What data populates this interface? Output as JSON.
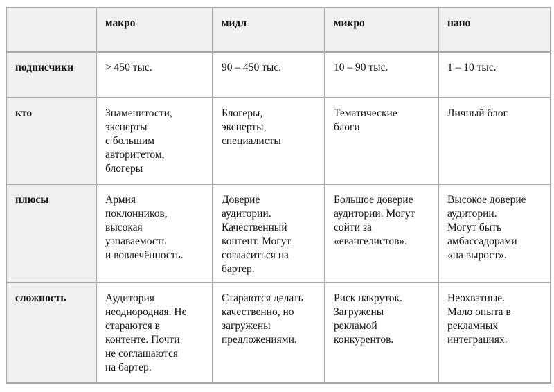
{
  "table": {
    "columns": [
      "",
      "макро",
      "мидл",
      "микро",
      "нано"
    ],
    "rows": [
      {
        "label": "подписчики",
        "cells": [
          "> 450 тыс.",
          "90 – 450 тыс.",
          "10 – 90 тыс.",
          "1 – 10 тыс."
        ]
      },
      {
        "label": "кто",
        "cells": [
          "Знаменитости,\nэксперты\nс большим\nавторитетом,\nблогеры",
          "Блогеры,\nэксперты,\nспециалисты",
          "Тематические\nблоги",
          "Личный блог"
        ]
      },
      {
        "label": "плюсы",
        "cells": [
          "Армия\nпоклонников,\nвысокая\nузнаваемость\nи вовлечённость.",
          "Доверие\nаудитории.\nКачественный\nконтент. Могут\nсогласиться на\nбартер.",
          "Большое доверие\nаудитории. Могут\nсойти за\n«евангелистов».",
          "Высокое доверие\nаудитории.\nМогут быть\nамбассадорами\n«на вырост»."
        ]
      },
      {
        "label": "сложность",
        "cells": [
          "Аудитория\nнеоднородная. Не\nстараются в\nконтенте. Почти\nне соглашаются\nна бартер.",
          "Стараются делать\nкачественно, но\nзагружены\nпредложениями.",
          "Риск накруток.\nЗагружены\nрекламой\nконкурентов.",
          "Неохватные.\nМало опыта в\nрекламных\nинтеграциях."
        ]
      }
    ],
    "colors": {
      "header_bg": "#f0f0f0",
      "cell_bg": "#ffffff",
      "border": "#a8a8a8",
      "text": "#111111"
    }
  }
}
